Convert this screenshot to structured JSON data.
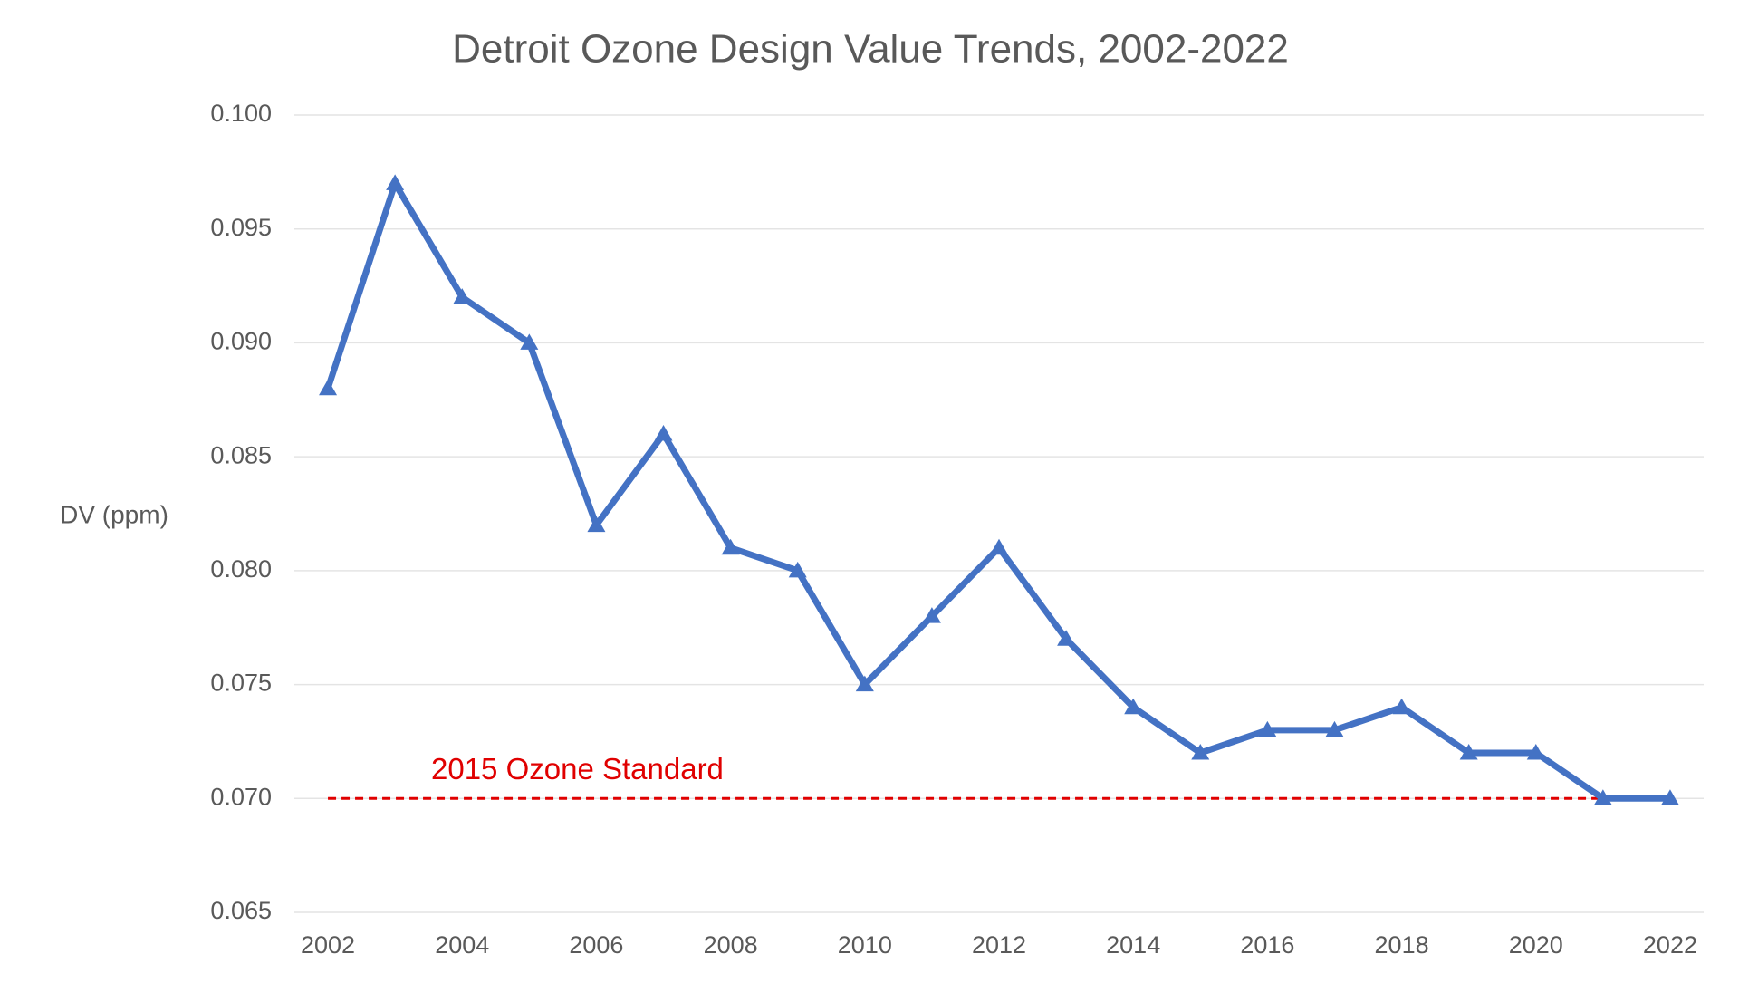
{
  "chart_data": {
    "type": "line",
    "title": "Detroit Ozone Design Value Trends, 2002-2022",
    "y_label": "DV (ppm)",
    "x": [
      2002,
      2003,
      2004,
      2005,
      2006,
      2007,
      2008,
      2009,
      2010,
      2011,
      2012,
      2013,
      2014,
      2015,
      2016,
      2017,
      2018,
      2019,
      2020,
      2021,
      2022
    ],
    "series": [
      {
        "color": "#4472c4",
        "marker": "triangle",
        "values": [
          0.088,
          0.097,
          0.092,
          0.09,
          0.082,
          0.086,
          0.081,
          0.08,
          0.075,
          0.078,
          0.081,
          0.077,
          0.074,
          0.072,
          0.073,
          0.073,
          0.074,
          0.072,
          0.072,
          0.07,
          0.07
        ]
      }
    ],
    "xlim": [
      2001.5,
      2022.5
    ],
    "xticks": [
      2002,
      2004,
      2006,
      2008,
      2010,
      2012,
      2014,
      2016,
      2018,
      2020,
      2022
    ],
    "ylim": [
      0.065,
      0.1
    ],
    "yticks": [
      0.065,
      {
        "value": 0.07,
        "label": "0.070"
      },
      0.075,
      {
        "value": 0.08,
        "label": "0.080"
      },
      0.085,
      {
        "value": 0.09,
        "label": "0.090"
      },
      0.095,
      {
        "value": 0.1,
        "label": "0.100"
      }
    ],
    "grid": true,
    "reference_line": {
      "value": 0.07,
      "label": "2015 Ozone Standard",
      "color": "#e00000"
    }
  }
}
